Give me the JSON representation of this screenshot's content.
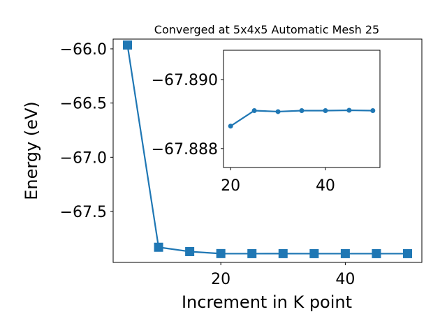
{
  "chart_data": [
    {
      "type": "line",
      "title": "Converged at 5x4x5 Automatic Mesh 25",
      "xlabel": "Increment in K point",
      "ylabel": "Energy (eV)",
      "xlim": [
        2.7,
        52.3
      ],
      "ylim": [
        -67.97,
        -65.91
      ],
      "x_ticks": [
        20,
        40
      ],
      "x_tick_labels": [
        "20",
        "40"
      ],
      "y_ticks": [
        -66.0,
        -66.5,
        -67.0,
        -67.5
      ],
      "y_tick_labels": [
        "−66.0",
        "−66.5",
        "−67.0",
        "−67.5"
      ],
      "grid": false,
      "marker": "square",
      "color": "#1f77b4",
      "series": [
        {
          "x": [
            5,
            10,
            15,
            20,
            25,
            30,
            35,
            40,
            45,
            50
          ],
          "y": [
            -65.965,
            -67.83,
            -67.87,
            -67.8885,
            -67.889,
            -67.8889,
            -67.889,
            -67.889,
            -67.889,
            -67.889
          ]
        }
      ]
    },
    {
      "type": "line",
      "title": "",
      "xlabel": "",
      "ylabel": "",
      "xlim": [
        18.5,
        51.5
      ],
      "ylim": [
        -67.88745,
        -67.89085
      ],
      "x_ticks": [
        20,
        40
      ],
      "x_tick_labels": [
        "20",
        "40"
      ],
      "y_ticks": [
        -67.89,
        -67.888
      ],
      "y_tick_labels": [
        "−67.890",
        "−67.888"
      ],
      "grid": false,
      "marker": "circle",
      "color": "#1f77b4",
      "series": [
        {
          "x": [
            20,
            25,
            30,
            35,
            40,
            45,
            50
          ],
          "y": [
            -67.88865,
            -67.8891,
            -67.88907,
            -67.8891,
            -67.8891,
            -67.88911,
            -67.8891
          ]
        }
      ]
    }
  ]
}
